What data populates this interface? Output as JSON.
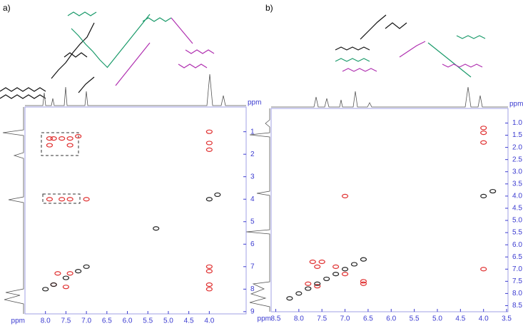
{
  "chart_data": [
    {
      "type": "scatter",
      "label": "a)",
      "x_label": "ppm",
      "y_label": "ppm",
      "xlim": [
        8.5,
        3.1
      ],
      "ylim": [
        -0.1,
        9.1
      ],
      "xticks": [
        {
          "value": 8.0,
          "label": "8.0"
        },
        {
          "value": 7.5,
          "label": "7.5"
        },
        {
          "value": 7.0,
          "label": "7.0"
        },
        {
          "value": 6.5,
          "label": "6.5"
        },
        {
          "value": 6.0,
          "label": "6.0"
        },
        {
          "value": 5.5,
          "label": "5.5"
        },
        {
          "value": 5.0,
          "label": "5.0"
        },
        {
          "value": 4.5,
          "label": "4.5"
        },
        {
          "value": 4.0,
          "label": "4.0"
        }
      ],
      "yticks": [
        1,
        2,
        3,
        4,
        5,
        6,
        7,
        8,
        9
      ],
      "series": [
        {
          "color": "#e03030",
          "x": [
            7.9,
            7.8,
            7.6,
            7.4,
            7.2,
            7.9,
            7.4,
            7.9,
            7.6,
            7.4,
            7.0,
            4.0,
            4.0,
            4.0,
            4.0,
            4.0,
            4.0,
            4.0,
            7.7,
            7.4,
            7.8,
            7.5
          ],
          "y": [
            1.3,
            1.3,
            1.3,
            1.3,
            1.2,
            1.6,
            1.6,
            4.0,
            4.0,
            4.0,
            4.0,
            1.0,
            1.5,
            1.8,
            7.0,
            7.2,
            7.8,
            8.0,
            7.3,
            7.3,
            7.8,
            7.9
          ]
        },
        {
          "color": "#222222",
          "x": [
            8.0,
            7.8,
            7.5,
            7.2,
            7.0,
            5.3,
            4.0,
            3.8
          ],
          "y": [
            8.0,
            7.8,
            7.5,
            7.2,
            7.0,
            5.3,
            4.0,
            3.8
          ]
        }
      ]
    },
    {
      "type": "scatter",
      "label": "b)",
      "x_label": "ppm",
      "y_label": "ppm",
      "xlim": [
        8.6,
        3.47
      ],
      "ylim": [
        0.4,
        8.75
      ],
      "xticks": [
        {
          "value": 8.5,
          "label": "8.5"
        },
        {
          "value": 8.0,
          "label": "8.0"
        },
        {
          "value": 7.5,
          "label": "7.5"
        },
        {
          "value": 7.0,
          "label": "7.0"
        },
        {
          "value": 6.5,
          "label": "6.5"
        },
        {
          "value": 6.0,
          "label": "6.0"
        },
        {
          "value": 5.5,
          "label": "5.5"
        },
        {
          "value": 5.0,
          "label": "5.0"
        },
        {
          "value": 4.5,
          "label": "4.5"
        },
        {
          "value": 4.0,
          "label": "4.0"
        },
        {
          "value": 3.5,
          "label": "3.5"
        }
      ],
      "yticks": [
        {
          "value": 1.0,
          "label": "1.0"
        },
        {
          "value": 1.5,
          "label": "1.5"
        },
        {
          "value": 2.0,
          "label": "2.0"
        },
        {
          "value": 2.5,
          "label": "2.5"
        },
        {
          "value": 3.0,
          "label": "3.0"
        },
        {
          "value": 3.5,
          "label": "3.5"
        },
        {
          "value": 4.0,
          "label": "4.0"
        },
        {
          "value": 4.5,
          "label": "4.5"
        },
        {
          "value": 5.0,
          "label": "5.0"
        },
        {
          "value": 5.5,
          "label": "5.5"
        },
        {
          "value": 6.0,
          "label": "6.0"
        },
        {
          "value": 6.5,
          "label": "6.5"
        },
        {
          "value": 7.0,
          "label": "7.0"
        },
        {
          "value": 7.5,
          "label": "7.5"
        },
        {
          "value": 8.0,
          "label": "8.0"
        },
        {
          "value": 8.5,
          "label": "8.5"
        }
      ],
      "series": [
        {
          "color": "#e03030",
          "x": [
            7.0,
            4.0,
            4.0,
            4.0,
            4.0,
            7.7,
            7.5,
            7.6,
            7.2,
            7.0,
            6.6,
            6.6,
            7.8,
            7.6
          ],
          "y": [
            4.0,
            1.2,
            1.4,
            1.8,
            7.0,
            6.7,
            6.7,
            6.9,
            6.9,
            7.2,
            7.5,
            7.6,
            7.6,
            7.7
          ]
        },
        {
          "color": "#222222",
          "x": [
            8.2,
            8.0,
            7.8,
            7.6,
            7.4,
            7.2,
            7.0,
            6.8,
            6.6,
            4.0,
            3.8
          ],
          "y": [
            8.2,
            8.0,
            7.8,
            7.6,
            7.4,
            7.2,
            7.0,
            6.8,
            6.6,
            4.0,
            3.8
          ]
        }
      ]
    }
  ]
}
